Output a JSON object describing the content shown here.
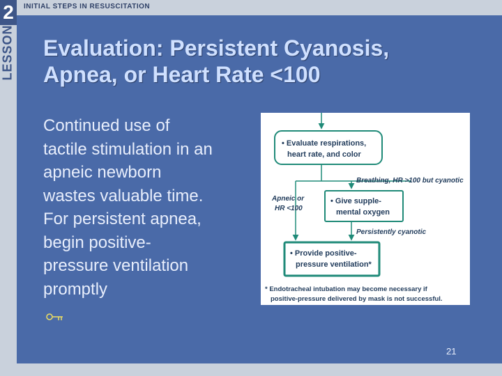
{
  "header": {
    "lesson_number": "2",
    "lesson_label": "LESSON",
    "section_title": "INITIAL STEPS IN RESUSCITATION"
  },
  "slide": {
    "title_line1": "Evaluation: Persistent Cyanosis,",
    "title_line2": "Apnea, or Heart Rate <100",
    "body_lines": [
      "Continued use of",
      "tactile stimulation in an",
      "apneic newborn",
      "wastes valuable time.",
      "For persistent apnea,",
      "begin positive-",
      "pressure ventilation",
      "promptly"
    ],
    "page_number": "21"
  },
  "diagram": {
    "box1_line1": "• Evaluate respirations,",
    "box1_line2": "heart rate, and color",
    "label_breathing": "Breathing, HR >100 but cyanotic",
    "label_apneic_line1": "Apneic or",
    "label_apneic_line2": "HR <100",
    "box2_line1": "• Give supple-",
    "box2_line2": "mental oxygen",
    "label_persistent": "Persistently cyanotic",
    "box3_line1": "• Provide positive-",
    "box3_line2": "pressure ventilation*",
    "footnote_line1": "* Endotracheal intubation may become necessary if",
    "footnote_line2": "positive-pressure delivered by mask is not successful.",
    "accent_color": "#1f8a78"
  },
  "icons": {
    "key": "key-icon"
  }
}
